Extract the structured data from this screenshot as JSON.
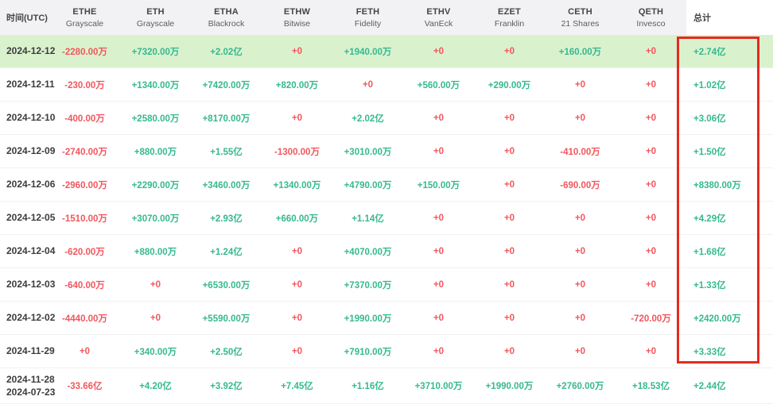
{
  "table": {
    "time_header": "时间(UTC)",
    "total_header": "总计",
    "columns": [
      {
        "ticker": "ETHE",
        "issuer": "Grayscale"
      },
      {
        "ticker": "ETH",
        "issuer": "Grayscale"
      },
      {
        "ticker": "ETHA",
        "issuer": "Blackrock"
      },
      {
        "ticker": "ETHW",
        "issuer": "Bitwise"
      },
      {
        "ticker": "FETH",
        "issuer": "Fidelity"
      },
      {
        "ticker": "ETHV",
        "issuer": "VanEck"
      },
      {
        "ticker": "EZET",
        "issuer": "Franklin"
      },
      {
        "ticker": "CETH",
        "issuer": "21 Shares"
      },
      {
        "ticker": "QETH",
        "issuer": "Invesco"
      }
    ],
    "rows": [
      {
        "date": [
          "2024-12-12"
        ],
        "highlighted": true,
        "values": [
          "-2280.00万",
          "+7320.00万",
          "+2.02亿",
          "+0",
          "+1940.00万",
          "+0",
          "+0",
          "+160.00万",
          "+0",
          "+2.74亿"
        ]
      },
      {
        "date": [
          "2024-12-11"
        ],
        "highlighted": false,
        "values": [
          "-230.00万",
          "+1340.00万",
          "+7420.00万",
          "+820.00万",
          "+0",
          "+560.00万",
          "+290.00万",
          "+0",
          "+0",
          "+1.02亿"
        ]
      },
      {
        "date": [
          "2024-12-10"
        ],
        "highlighted": false,
        "values": [
          "-400.00万",
          "+2580.00万",
          "+8170.00万",
          "+0",
          "+2.02亿",
          "+0",
          "+0",
          "+0",
          "+0",
          "+3.06亿"
        ]
      },
      {
        "date": [
          "2024-12-09"
        ],
        "highlighted": false,
        "values": [
          "-2740.00万",
          "+880.00万",
          "+1.55亿",
          "-1300.00万",
          "+3010.00万",
          "+0",
          "+0",
          "-410.00万",
          "+0",
          "+1.50亿"
        ]
      },
      {
        "date": [
          "2024-12-06"
        ],
        "highlighted": false,
        "values": [
          "-2960.00万",
          "+2290.00万",
          "+3460.00万",
          "+1340.00万",
          "+4790.00万",
          "+150.00万",
          "+0",
          "-690.00万",
          "+0",
          "+8380.00万"
        ]
      },
      {
        "date": [
          "2024-12-05"
        ],
        "highlighted": false,
        "values": [
          "-1510.00万",
          "+3070.00万",
          "+2.93亿",
          "+660.00万",
          "+1.14亿",
          "+0",
          "+0",
          "+0",
          "+0",
          "+4.29亿"
        ]
      },
      {
        "date": [
          "2024-12-04"
        ],
        "highlighted": false,
        "values": [
          "-620.00万",
          "+880.00万",
          "+1.24亿",
          "+0",
          "+4070.00万",
          "+0",
          "+0",
          "+0",
          "+0",
          "+1.68亿"
        ]
      },
      {
        "date": [
          "2024-12-03"
        ],
        "highlighted": false,
        "values": [
          "-640.00万",
          "+0",
          "+6530.00万",
          "+0",
          "+7370.00万",
          "+0",
          "+0",
          "+0",
          "+0",
          "+1.33亿"
        ]
      },
      {
        "date": [
          "2024-12-02"
        ],
        "highlighted": false,
        "values": [
          "-4440.00万",
          "+0",
          "+5590.00万",
          "+0",
          "+1990.00万",
          "+0",
          "+0",
          "+0",
          "-720.00万",
          "+2420.00万"
        ]
      },
      {
        "date": [
          "2024-11-29"
        ],
        "highlighted": false,
        "values": [
          "+0",
          "+340.00万",
          "+2.50亿",
          "+0",
          "+7910.00万",
          "+0",
          "+0",
          "+0",
          "+0",
          "+3.33亿"
        ]
      },
      {
        "date": [
          "2024-11-28",
          "2024-07-23"
        ],
        "highlighted": false,
        "values": [
          "-33.66亿",
          "+4.20亿",
          "+3.92亿",
          "+7.45亿",
          "+1.16亿",
          "+3710.00万",
          "+1990.00万",
          "+2760.00万",
          "+18.53亿",
          "+2.44亿"
        ]
      }
    ]
  },
  "colors": {
    "positive": "#35b990",
    "negative": "#f1575d",
    "highlight_row_bg": "#d9f2cd",
    "header_bg": "#f2f2f4",
    "annotation_red": "#e8291c"
  },
  "annotation": {
    "label": "total-column-highlight-box"
  }
}
